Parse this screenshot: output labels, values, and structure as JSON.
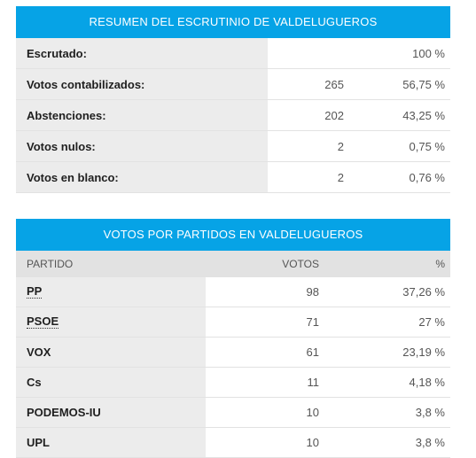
{
  "summary": {
    "title": "RESUMEN DEL ESCRUTINIO DE VALDELUGUEROS",
    "rows": [
      {
        "label": "Escrutado:",
        "count": "",
        "pct": "100 %"
      },
      {
        "label": "Votos contabilizados:",
        "count": "265",
        "pct": "56,75 %"
      },
      {
        "label": "Abstenciones:",
        "count": "202",
        "pct": "43,25 %"
      },
      {
        "label": "Votos nulos:",
        "count": "2",
        "pct": "0,75 %"
      },
      {
        "label": "Votos en blanco:",
        "count": "2",
        "pct": "0,76 %"
      }
    ]
  },
  "parties": {
    "title": "VOTOS POR PARTIDOS EN VALDELUGUEROS",
    "headers": {
      "party": "PARTIDO",
      "votes": "VOTOS",
      "pct": "%"
    },
    "rows": [
      {
        "name": "PP",
        "votes": "98",
        "pct": "37,26 %"
      },
      {
        "name": "PSOE",
        "votes": "71",
        "pct": "27 %"
      },
      {
        "name": "VOX",
        "votes": "61",
        "pct": "23,19 %"
      },
      {
        "name": "Cs",
        "votes": "11",
        "pct": "4,18 %"
      },
      {
        "name": "PODEMOS-IU",
        "votes": "10",
        "pct": "3,8 %"
      },
      {
        "name": "UPL",
        "votes": "10",
        "pct": "3,8 %"
      }
    ]
  },
  "colors": {
    "banner": "#06a3e6",
    "label_bg": "#ececec"
  }
}
